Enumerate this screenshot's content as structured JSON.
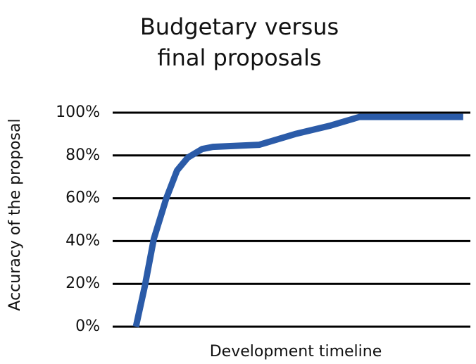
{
  "chart_data": {
    "type": "line",
    "title": [
      "Budgetary versus",
      "final proposals"
    ],
    "x_label": "Development timeline",
    "y_label": "Accuracy of the proposal",
    "x": [
      6.5,
      9,
      11.5,
      15,
      18,
      21,
      25,
      28,
      41,
      51,
      61,
      69,
      79,
      98
    ],
    "series": [
      {
        "color": "#2b5ba8",
        "values": [
          0,
          19,
          41,
          60,
          73,
          79,
          83,
          84,
          85,
          90,
          94,
          98,
          98,
          98
        ]
      }
    ],
    "xlim": [
      0,
      100
    ],
    "ylim": [
      0,
      100
    ],
    "yticks": [
      {
        "value": 0,
        "label": "0%"
      },
      {
        "value": 20,
        "label": "20%"
      },
      {
        "value": 40,
        "label": "40%"
      },
      {
        "value": 60,
        "label": "60%"
      },
      {
        "value": 80,
        "label": "80%"
      },
      {
        "value": 100,
        "label": "100%"
      }
    ],
    "grid": true
  }
}
